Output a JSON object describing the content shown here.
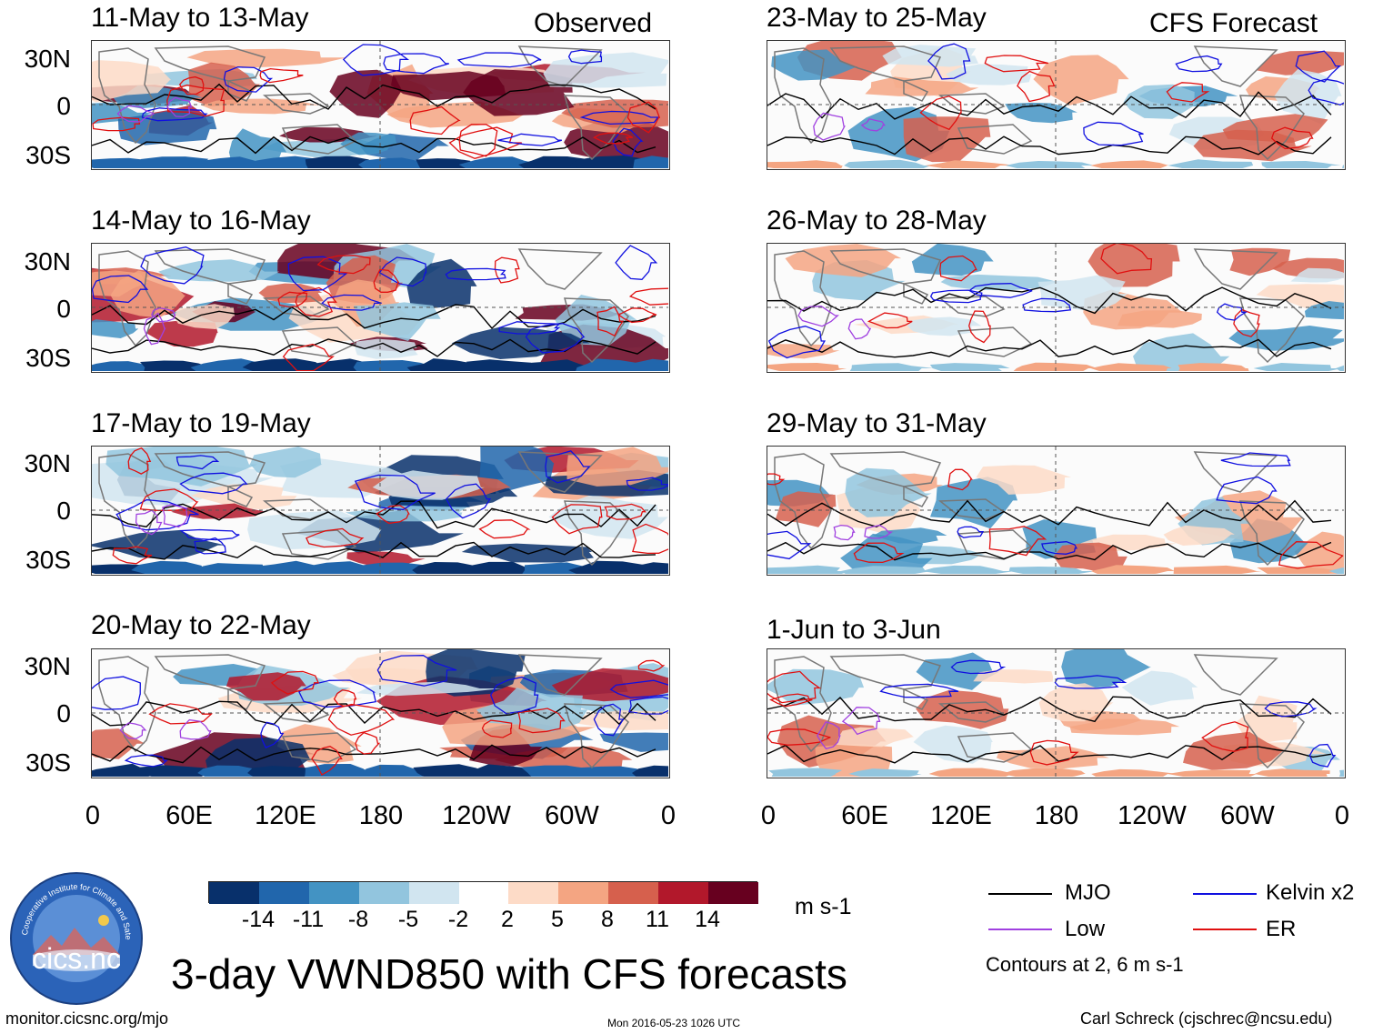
{
  "header": {
    "left_label": "Observed",
    "right_label": "CFS Forecast"
  },
  "axes": {
    "lat_labels": [
      "30N",
      "0",
      "30S"
    ],
    "lon_labels": [
      "0",
      "60E",
      "120E",
      "180",
      "120W",
      "60W",
      "0"
    ]
  },
  "panels": [
    {
      "title": "11-May to 13-May"
    },
    {
      "title": "14-May to 16-May"
    },
    {
      "title": "17-May to 19-May"
    },
    {
      "title": "20-May to 22-May"
    },
    {
      "title": "23-May to 25-May"
    },
    {
      "title": "26-May to 28-May"
    },
    {
      "title": "29-May to 31-May"
    },
    {
      "title": "1-Jun to 3-Jun"
    }
  ],
  "colorbar": {
    "colors": [
      "#08306b",
      "#2166ac",
      "#4393c3",
      "#92c5de",
      "#d1e5f0",
      "#ffffff",
      "#fddbc7",
      "#f4a582",
      "#d6604d",
      "#b2182b",
      "#67001f"
    ],
    "ticks": [
      "-14",
      "-11",
      "-8",
      "-5",
      "-2",
      "2",
      "5",
      "8",
      "11",
      "14"
    ],
    "units": "m s-1"
  },
  "legend": {
    "items": [
      {
        "label": "MJO",
        "color": "#000000"
      },
      {
        "label": "Kelvin x2",
        "color": "#1010e0"
      },
      {
        "label": "Low",
        "color": "#a040e0"
      },
      {
        "label": "ER",
        "color": "#e01010"
      }
    ],
    "note": "Contours at 2, 6 m s-1"
  },
  "main_title": "3-day VWND850 with CFS forecasts",
  "logo_text": "cics.nc",
  "logo_ring_text": "Cooperative Institute for Climate and Satellites",
  "footer": {
    "url": "monitor.cicsnc.org/mjo",
    "timestamp": "Mon 2016-05-23 1026 UTC",
    "author": "Carl Schreck (cjschrec@ncsu.edu)"
  }
}
